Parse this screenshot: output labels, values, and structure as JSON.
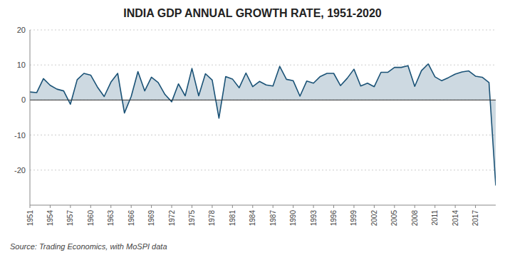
{
  "chart_data": {
    "type": "area",
    "title": "INDIA GDP ANNUAL GROWTH RATE, 1951-2020",
    "source": "Source: Trading Economics, with MoSPI data",
    "x": [
      1951,
      1952,
      1953,
      1954,
      1955,
      1956,
      1957,
      1958,
      1959,
      1960,
      1961,
      1962,
      1963,
      1964,
      1965,
      1966,
      1967,
      1968,
      1969,
      1970,
      1971,
      1972,
      1973,
      1974,
      1975,
      1976,
      1977,
      1978,
      1979,
      1980,
      1981,
      1982,
      1983,
      1984,
      1985,
      1986,
      1987,
      1988,
      1989,
      1990,
      1991,
      1992,
      1993,
      1994,
      1995,
      1996,
      1997,
      1998,
      1999,
      2000,
      2001,
      2002,
      2003,
      2004,
      2005,
      2006,
      2007,
      2008,
      2009,
      2010,
      2011,
      2012,
      2013,
      2014,
      2015,
      2016,
      2017,
      2018,
      2019,
      2020
    ],
    "values": [
      2.3,
      2.1,
      6.1,
      4.2,
      3.1,
      2.6,
      -1.2,
      5.8,
      7.6,
      7.1,
      3.7,
      1.0,
      5.1,
      7.6,
      -3.7,
      1.0,
      8.1,
      2.6,
      6.5,
      5.0,
      1.6,
      -0.5,
      4.6,
      1.2,
      9.0,
      1.2,
      7.5,
      5.7,
      -5.2,
      6.7,
      6.0,
      3.5,
      7.7,
      3.8,
      5.3,
      4.3,
      4.0,
      9.6,
      5.9,
      5.5,
      1.1,
      5.4,
      4.8,
      6.7,
      7.6,
      7.6,
      4.1,
      6.2,
      8.8,
      4.0,
      4.8,
      3.8,
      7.9,
      7.9,
      9.3,
      9.3,
      9.8,
      3.9,
      8.4,
      10.3,
      6.6,
      5.5,
      6.4,
      7.4,
      8.0,
      8.3,
      6.8,
      6.5,
      5.0,
      -24.4
    ],
    "color": "#1a5276",
    "xlim": [
      1951,
      2020
    ],
    "xticks": [
      1951,
      1954,
      1957,
      1960,
      1963,
      1966,
      1969,
      1972,
      1975,
      1978,
      1981,
      1984,
      1987,
      1990,
      1993,
      1996,
      1999,
      2002,
      2005,
      2008,
      2011,
      2014,
      2017
    ],
    "ylim": [
      -30,
      20
    ],
    "yticks": [
      -20,
      -10,
      0,
      10,
      20
    ],
    "grid": true
  }
}
